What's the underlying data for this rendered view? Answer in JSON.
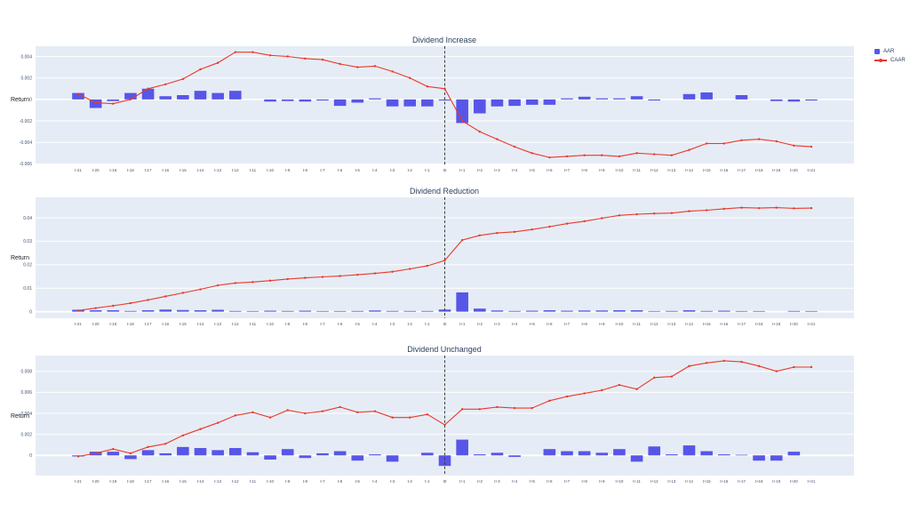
{
  "page": {
    "background": "#ffffff"
  },
  "legend": {
    "items": [
      {
        "label": "AAR",
        "symbol": "square",
        "color": "#5756e8"
      },
      {
        "label": "CAAR",
        "symbol": "line-marker",
        "color": "#ea382b"
      }
    ]
  },
  "chart_data": [
    {
      "type": "bar",
      "title": "Dividend Increase",
      "ylabel": "Return",
      "plot_bg": "#e6ecf5",
      "grid": true,
      "legend_position": "top-right",
      "event_line_at": "t0",
      "categories": [
        "t-21",
        "t-20",
        "t-19",
        "t-18",
        "t-17",
        "t-16",
        "t-15",
        "t-14",
        "t-13",
        "t-12",
        "t-11",
        "t-10",
        "t-9",
        "t-8",
        "t-7",
        "t-6",
        "t-5",
        "t-4",
        "t-3",
        "t-2",
        "t-1",
        "t0",
        "t+1",
        "t+2",
        "t+3",
        "t+4",
        "t+5",
        "t+6",
        "t+7",
        "t+8",
        "t+9",
        "t+10",
        "t+11",
        "t+12",
        "t+13",
        "t+14",
        "t+15",
        "t+16",
        "t+17",
        "t+18",
        "t+19",
        "t+20",
        "t+21"
      ],
      "yticks": [
        "0.004",
        "0.002",
        "0",
        "-0.002",
        "-0.004",
        "-0.006"
      ],
      "ylim": [
        -0.00605,
        0.00495
      ],
      "series": [
        {
          "name": "AAR",
          "type": "bar",
          "color": "#5756e8",
          "values": [
            0.0006,
            -0.0008,
            -0.00015,
            0.0006,
            0.001,
            0.0003,
            0.0004,
            0.0008,
            0.0006,
            0.0008,
            0.0,
            -0.0002,
            -0.00015,
            -0.0002,
            -0.0001,
            -0.0006,
            -0.0003,
            0.0001,
            -0.00065,
            -0.00065,
            -0.00065,
            -0.0001,
            -0.0022,
            -0.0013,
            -0.00065,
            -0.0006,
            -0.0005,
            -0.0005,
            0.0001,
            0.00025,
            0.0001,
            0.0001,
            0.0003,
            -0.0001,
            0.0,
            0.0005,
            0.00065,
            0.0,
            0.0004,
            0.0,
            -0.00015,
            -0.0002,
            -0.0001
          ]
        },
        {
          "name": "CAAR",
          "type": "line",
          "color": "#ea382b",
          "values": [
            0.0005,
            -0.0003,
            -0.0004,
            0.0,
            0.001,
            0.0014,
            0.0019,
            0.0028,
            0.0034,
            0.0044,
            0.0044,
            0.0041,
            0.004,
            0.0038,
            0.0037,
            0.0033,
            0.003,
            0.0031,
            0.0026,
            0.002,
            0.0012,
            0.001,
            -0.002,
            -0.003,
            -0.0037,
            -0.0044,
            -0.005,
            -0.0054,
            -0.0053,
            -0.0052,
            -0.0052,
            -0.0053,
            -0.005,
            -0.0051,
            -0.0052,
            -0.0047,
            -0.0041,
            -0.0041,
            -0.0038,
            -0.0037,
            -0.0039,
            -0.0043,
            -0.0044
          ]
        }
      ]
    },
    {
      "type": "bar",
      "title": "Dividend Reduction",
      "ylabel": "Return",
      "plot_bg": "#e6ecf5",
      "grid": true,
      "event_line_at": "t0",
      "categories": [
        "t-21",
        "t-20",
        "t-19",
        "t-18",
        "t-17",
        "t-16",
        "t-15",
        "t-14",
        "t-13",
        "t-12",
        "t-11",
        "t-10",
        "t-9",
        "t-8",
        "t-7",
        "t-6",
        "t-5",
        "t-4",
        "t-3",
        "t-2",
        "t-1",
        "t0",
        "t+1",
        "t+2",
        "t+3",
        "t+4",
        "t+5",
        "t+6",
        "t+7",
        "t+8",
        "t+9",
        "t+10",
        "t+11",
        "t+12",
        "t+13",
        "t+14",
        "t+15",
        "t+16",
        "t+17",
        "t+18",
        "t+19",
        "t+20",
        "t+21"
      ],
      "yticks": [
        "0.04",
        "0.03",
        "0.02",
        "0.01",
        "0"
      ],
      "ylim": [
        -0.0028,
        0.0487
      ],
      "series": [
        {
          "name": "AAR",
          "type": "bar",
          "color": "#5756e8",
          "values": [
            0.0008,
            0.0006,
            0.0006,
            0.0003,
            0.0006,
            0.0009,
            0.0007,
            0.0006,
            0.0008,
            0.0003,
            0.0002,
            0.0004,
            0.0003,
            0.0004,
            0.0002,
            0.0001,
            0.0003,
            0.0005,
            0.0003,
            0.0003,
            0.0003,
            0.0009,
            0.0082,
            0.0013,
            0.0005,
            0.0003,
            0.0004,
            0.0006,
            0.0004,
            0.0005,
            0.0005,
            0.0006,
            0.0006,
            0.0001,
            0.0003,
            0.0006,
            0.0003,
            0.0004,
            0.0001,
            0.0001,
            0.0,
            0.0003,
            0.0001
          ]
        },
        {
          "name": "CAAR",
          "type": "line",
          "color": "#ea382b",
          "values": [
            0.0005,
            0.0015,
            0.0025,
            0.0036,
            0.005,
            0.0065,
            0.008,
            0.0095,
            0.0112,
            0.0122,
            0.0126,
            0.0132,
            0.0139,
            0.0144,
            0.0148,
            0.0152,
            0.0157,
            0.0163,
            0.017,
            0.0182,
            0.0195,
            0.0218,
            0.0305,
            0.0325,
            0.0335,
            0.034,
            0.035,
            0.0362,
            0.0375,
            0.0385,
            0.0398,
            0.041,
            0.0415,
            0.0418,
            0.042,
            0.0428,
            0.0432,
            0.0438,
            0.0443,
            0.0441,
            0.0443,
            0.044,
            0.0441
          ]
        }
      ]
    },
    {
      "type": "bar",
      "title": "Dividend Unchanged",
      "ylabel": "Return",
      "plot_bg": "#e6ecf5",
      "grid": true,
      "event_line_at": "t0",
      "categories": [
        "t-21",
        "t-20",
        "t-19",
        "t-18",
        "t-17",
        "t-16",
        "t-15",
        "t-14",
        "t-13",
        "t-12",
        "t-11",
        "t-10",
        "t-9",
        "t-8",
        "t-7",
        "t-6",
        "t-5",
        "t-4",
        "t-3",
        "t-2",
        "t-1",
        "t0",
        "t+1",
        "t+2",
        "t+3",
        "t+4",
        "t+5",
        "t+6",
        "t+7",
        "t+8",
        "t+9",
        "t+10",
        "t+11",
        "t+12",
        "t+13",
        "t+14",
        "t+15",
        "t+16",
        "t+17",
        "t+18",
        "t+19",
        "t+20",
        "t+21"
      ],
      "yticks": [
        "0.008",
        "0.006",
        "0.004",
        "0.002",
        "0"
      ],
      "ylim": [
        -0.00192,
        0.0095
      ],
      "series": [
        {
          "name": "AAR",
          "type": "bar",
          "color": "#5756e8",
          "values": [
            -0.0001,
            0.00035,
            0.00035,
            -0.00035,
            0.0005,
            0.0002,
            0.0008,
            0.0007,
            0.0005,
            0.0007,
            0.0003,
            -0.0004,
            0.0006,
            -0.00025,
            0.0002,
            0.0004,
            -0.0005,
            0.0001,
            -0.0006,
            0.0,
            0.00025,
            -0.001,
            0.0015,
            0.0001,
            0.00025,
            -0.00015,
            0.0,
            0.0006,
            0.0004,
            0.0004,
            0.00025,
            0.0006,
            -0.0006,
            0.00085,
            0.0001,
            0.00095,
            0.0004,
            0.0001,
            5e-05,
            -0.0005,
            -0.0005,
            0.00035,
            0.0
          ]
        },
        {
          "name": "CAAR",
          "type": "line",
          "color": "#ea382b",
          "values": [
            -0.0001,
            0.0002,
            0.0006,
            0.0002,
            0.0008,
            0.0011,
            0.0019,
            0.0025,
            0.0031,
            0.0038,
            0.0041,
            0.0036,
            0.0043,
            0.004,
            0.0042,
            0.0046,
            0.0041,
            0.0042,
            0.0036,
            0.0036,
            0.0039,
            0.0029,
            0.0044,
            0.0044,
            0.0046,
            0.0045,
            0.0045,
            0.0052,
            0.0056,
            0.0059,
            0.0062,
            0.0067,
            0.0063,
            0.0074,
            0.0075,
            0.0085,
            0.0088,
            0.009,
            0.0089,
            0.0085,
            0.008,
            0.0084,
            0.0084
          ]
        }
      ]
    }
  ]
}
